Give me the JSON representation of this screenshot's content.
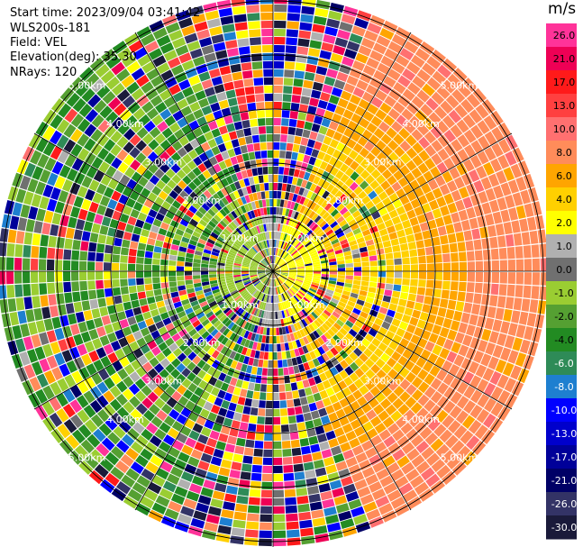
{
  "info": {
    "start_time": "Start time: 2023/09/04 03:41:42",
    "site": "WLS200s-181",
    "field": "Field: VEL",
    "elevation": "Elevation(deg): 35.30",
    "nrays": "NRays: 120"
  },
  "colorbar": {
    "unit": "m/s",
    "ticks": [
      "26.0",
      "21.0",
      "17.0",
      "13.0",
      "10.0",
      "8.0",
      "6.0",
      "4.0",
      "2.0",
      "1.0",
      "0.0",
      "-1.0",
      "-2.0",
      "-4.0",
      "-6.0",
      "-8.0",
      "-10.0",
      "-13.0",
      "-17.0",
      "-21.0",
      "-26.0",
      "-30.0"
    ],
    "colors": [
      "#ff3399",
      "#ee0055",
      "#ff1a1a",
      "#ff4040",
      "#ff7070",
      "#ff8c5a",
      "#ffa500",
      "#ffd000",
      "#ffff00",
      "#b0b0b0",
      "#707070",
      "#9acd32",
      "#55a032",
      "#228b22",
      "#2e8b57",
      "#1e7fd0",
      "#0000ff",
      "#0000cc",
      "#000099",
      "#000066",
      "#333366",
      "#1a1a3a"
    ]
  },
  "chart_data": {
    "type": "heatmap",
    "title": "",
    "field": "VEL",
    "units": "m/s",
    "projection": "polar PPI",
    "n_rays": 120,
    "elevation_deg": 35.3,
    "range_ring_labels": [
      "1.00km",
      "2.00km",
      "3.00km",
      "4.00km",
      "5.00km"
    ],
    "colorbar_range": [
      -30.0,
      26.0
    ]
  },
  "ring_labels": [
    {
      "text": "1.00km",
      "ring": 1
    },
    {
      "text": "2.00km",
      "ring": 2
    },
    {
      "text": "3.00km",
      "ring": 3
    },
    {
      "text": "4.00km",
      "ring": 4
    },
    {
      "text": "5.00km",
      "ring": 5
    }
  ]
}
